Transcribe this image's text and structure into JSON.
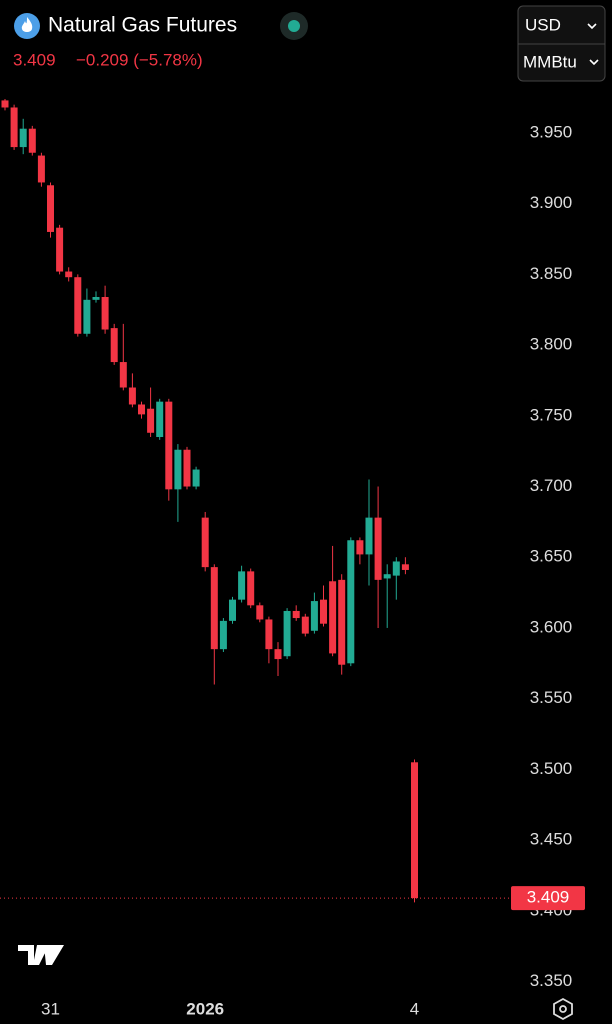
{
  "header": {
    "title": "Natural Gas Futures",
    "change": "−0.209 (−5.78%)",
    "currency": "USD",
    "unit": "MMBtu"
  },
  "chart_data": {
    "type": "candlestick",
    "categories": [
      null,
      null,
      null,
      null,
      null,
      "31",
      null,
      null,
      null,
      null,
      null,
      null,
      null,
      null,
      null,
      null,
      null,
      null,
      null,
      null,
      null,
      null,
      "2026",
      null,
      null,
      null,
      null,
      null,
      null,
      null,
      null,
      null,
      null,
      null,
      null,
      null,
      null,
      null,
      null,
      null,
      null,
      null,
      null,
      null,
      null,
      "4"
    ],
    "opens": [
      3.973,
      3.968,
      3.94,
      3.953,
      3.934,
      3.913,
      3.883,
      3.852,
      3.848,
      3.808,
      3.832,
      3.834,
      3.812,
      3.788,
      3.77,
      3.758,
      3.755,
      3.735,
      3.76,
      3.698,
      3.726,
      3.7,
      3.678,
      3.643,
      3.585,
      3.605,
      3.62,
      3.64,
      3.616,
      3.606,
      3.585,
      3.58,
      3.612,
      3.608,
      3.598,
      3.62,
      3.633,
      3.634,
      3.575,
      3.662,
      3.652,
      3.678,
      3.635,
      3.637,
      3.645,
      3.505
    ],
    "highs": [
      3.974,
      3.97,
      3.96,
      3.955,
      3.936,
      3.915,
      3.885,
      3.855,
      3.85,
      3.84,
      3.838,
      3.842,
      3.815,
      3.815,
      3.78,
      3.76,
      3.77,
      3.762,
      3.762,
      3.73,
      3.728,
      3.714,
      3.682,
      3.645,
      3.607,
      3.622,
      3.644,
      3.642,
      3.618,
      3.608,
      3.59,
      3.614,
      3.616,
      3.61,
      3.625,
      3.63,
      3.658,
      3.638,
      3.664,
      3.664,
      3.705,
      3.7,
      3.645,
      3.65,
      3.65,
      3.507
    ],
    "lows": [
      3.966,
      3.938,
      3.935,
      3.934,
      3.912,
      3.876,
      3.85,
      3.845,
      3.806,
      3.806,
      3.83,
      3.808,
      3.786,
      3.768,
      3.756,
      3.748,
      3.735,
      3.733,
      3.69,
      3.675,
      3.698,
      3.698,
      3.64,
      3.56,
      3.583,
      3.603,
      3.618,
      3.614,
      3.604,
      3.575,
      3.566,
      3.578,
      3.605,
      3.594,
      3.596,
      3.601,
      3.58,
      3.567,
      3.573,
      3.645,
      3.63,
      3.6,
      3.6,
      3.62,
      3.638,
      3.406
    ],
    "closes": [
      3.968,
      3.94,
      3.953,
      3.936,
      3.915,
      3.88,
      3.852,
      3.848,
      3.808,
      3.832,
      3.834,
      3.811,
      3.788,
      3.77,
      3.758,
      3.751,
      3.738,
      3.76,
      3.698,
      3.726,
      3.7,
      3.712,
      3.643,
      3.585,
      3.605,
      3.62,
      3.64,
      3.616,
      3.606,
      3.585,
      3.578,
      3.612,
      3.607,
      3.596,
      3.619,
      3.603,
      3.582,
      3.574,
      3.662,
      3.652,
      3.678,
      3.634,
      3.638,
      3.647,
      3.641,
      3.409
    ],
    "up_color": "#22ab94",
    "down_color": "#f23645",
    "last_price": 3.409,
    "ylim": [
      3.344,
      4.044
    ],
    "yticks": [
      {
        "value": 3.35,
        "label": "3.350"
      },
      {
        "value": 3.4,
        "label": "3.400"
      },
      {
        "value": 3.45,
        "label": "3.450"
      },
      {
        "value": 3.5,
        "label": "3.500"
      },
      {
        "value": 3.55,
        "label": "3.550"
      },
      {
        "value": 3.6,
        "label": "3.600"
      },
      {
        "value": 3.65,
        "label": "3.650"
      },
      {
        "value": 3.7,
        "label": "3.700"
      },
      {
        "value": 3.75,
        "label": "3.750"
      },
      {
        "value": 3.8,
        "label": "3.800"
      },
      {
        "value": 3.85,
        "label": "3.850"
      },
      {
        "value": 3.9,
        "label": "3.900"
      },
      {
        "value": 3.95,
        "label": "3.950"
      }
    ]
  }
}
